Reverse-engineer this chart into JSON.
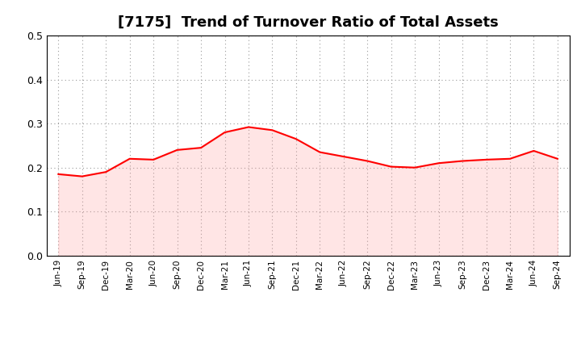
{
  "title": "[7175]  Trend of Turnover Ratio of Total Assets",
  "x_labels": [
    "Jun-19",
    "Sep-19",
    "Dec-19",
    "Mar-20",
    "Jun-20",
    "Sep-20",
    "Dec-20",
    "Mar-21",
    "Jun-21",
    "Sep-21",
    "Dec-21",
    "Mar-22",
    "Jun-22",
    "Sep-22",
    "Dec-22",
    "Mar-23",
    "Jun-23",
    "Sep-23",
    "Dec-23",
    "Mar-24",
    "Jun-24",
    "Sep-24"
  ],
  "y_values": [
    0.185,
    0.18,
    0.19,
    0.22,
    0.218,
    0.24,
    0.245,
    0.28,
    0.292,
    0.285,
    0.265,
    0.235,
    0.225,
    0.215,
    0.202,
    0.2,
    0.21,
    0.215,
    0.218,
    0.22,
    0.238,
    0.22
  ],
  "line_color": "#FF0000",
  "line_width": 1.5,
  "ylim": [
    0.0,
    0.5
  ],
  "yticks": [
    0.0,
    0.1,
    0.2,
    0.3,
    0.4,
    0.5
  ],
  "background_color": "#FFFFFF",
  "grid_color": "#999999",
  "title_fontsize": 13,
  "fill_color": "#FF9999",
  "fill_alpha": 0.25
}
